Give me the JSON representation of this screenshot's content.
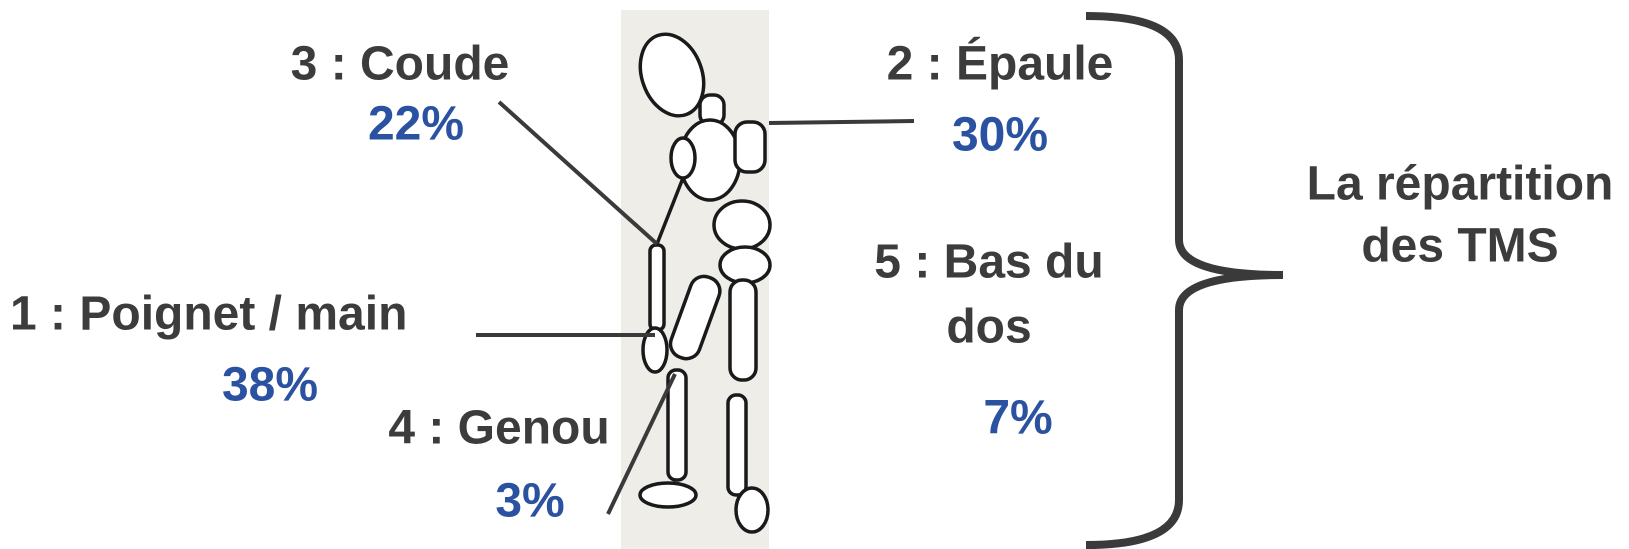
{
  "nodes": [
    {
      "label": [
        "3 : Coude"
      ],
      "share": "22%"
    },
    {
      "label": [
        "2 : Épaule"
      ],
      "share": "30%"
    },
    {
      "label": [
        "1 : Poignet / main"
      ],
      "share": "38%"
    },
    {
      "label": [
        "4 : Genou"
      ],
      "share": "3%"
    },
    {
      "label": [
        "5 : Bas du",
        "dos"
      ],
      "share": "7%"
    }
  ],
  "bracket": {
    "label": [
      "La répartition",
      "des TMS"
    ]
  }
}
